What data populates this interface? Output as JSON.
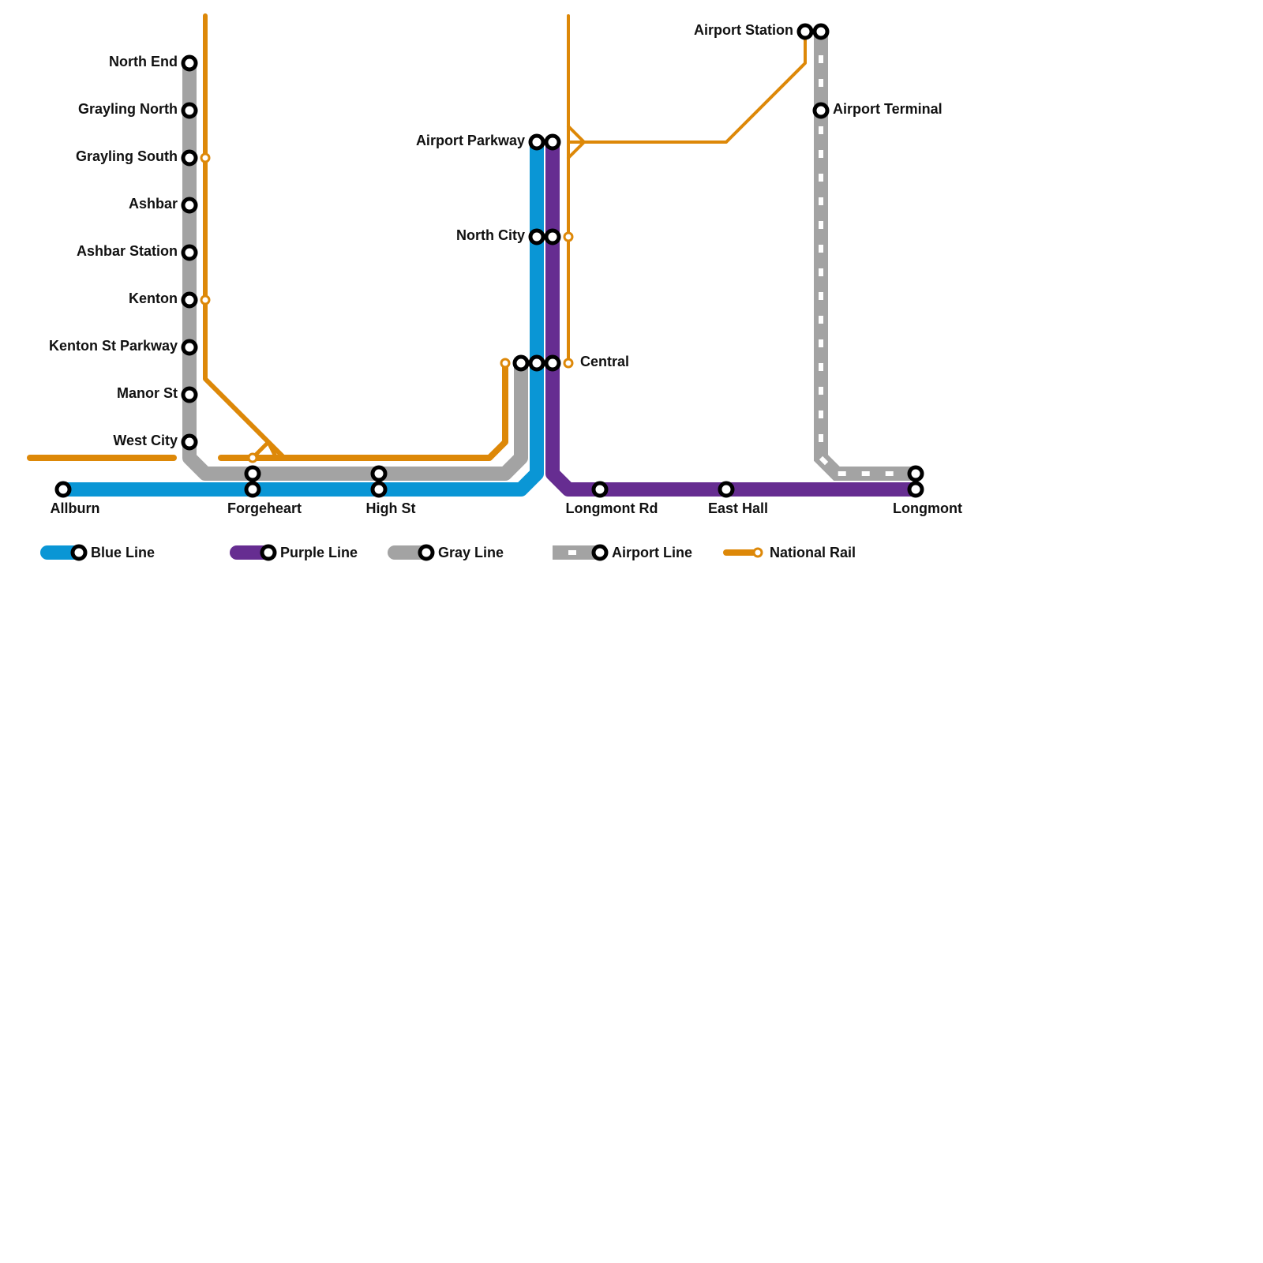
{
  "lines": {
    "blue": {
      "name": "Blue Line",
      "color": "#0a96d5"
    },
    "purple": {
      "name": "Purple Line",
      "color": "#662d91"
    },
    "gray": {
      "name": "Gray Line",
      "color": "#a3a3a3"
    },
    "airport": {
      "name": "Airport Line",
      "color": "#a3a3a3",
      "style": "dashed"
    },
    "national": {
      "name": "National Rail",
      "color": "#dd8808"
    }
  },
  "stations": {
    "north_end": "North End",
    "grayling_north": "Grayling North",
    "grayling_south": "Grayling South",
    "ashbar": "Ashbar",
    "ashbar_station": "Ashbar Station",
    "kenton": "Kenton",
    "kenton_st_parkway": "Kenton St Parkway",
    "manor_st": "Manor St",
    "west_city": "West City",
    "allburn": "Allburn",
    "forgeheart": "Forgeheart",
    "high_st": "High St",
    "airport_parkway": "Airport Parkway",
    "north_city": "North City",
    "central": "Central",
    "longmont_rd": "Longmont Rd",
    "east_hall": "East Hall",
    "longmont": "Longmont",
    "airport_station": "Airport Station",
    "airport_terminal": "Airport Terminal"
  },
  "legend": [
    "blue",
    "purple",
    "gray",
    "airport",
    "national"
  ]
}
